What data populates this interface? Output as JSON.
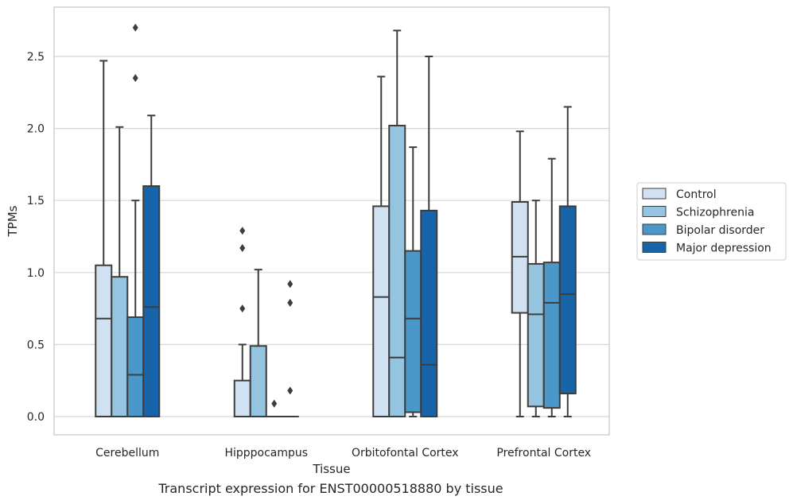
{
  "chart_data": {
    "type": "box",
    "xlabel": "Tissue",
    "ylabel": "TPMs",
    "ylim": [
      -0.13,
      2.85
    ],
    "yticks": [
      0.0,
      0.5,
      1.0,
      1.5,
      2.0,
      2.5
    ],
    "ytick_labels": [
      "0.0",
      "0.5",
      "1.0",
      "1.5",
      "2.0",
      "2.5"
    ],
    "grid": true,
    "legend_position": "right",
    "categories": [
      "Cerebellum",
      "Hipppocampus",
      "Orbitofontal Cortex",
      "Prefrontal Cortex"
    ],
    "series": [
      {
        "name": "Control",
        "color": "#d0e1f2",
        "boxes": [
          {
            "whislo": 0.0,
            "q1": 0.0,
            "med": 0.68,
            "q3": 1.05,
            "whishi": 2.47,
            "fliers": []
          },
          {
            "whislo": 0.0,
            "q1": 0.0,
            "med": 0.0,
            "q3": 0.25,
            "whishi": 0.5,
            "fliers": [
              0.75,
              1.17,
              1.29
            ]
          },
          {
            "whislo": 0.0,
            "q1": 0.0,
            "med": 0.83,
            "q3": 1.46,
            "whishi": 2.36,
            "fliers": []
          },
          {
            "whislo": 0.0,
            "q1": 0.72,
            "med": 1.11,
            "q3": 1.49,
            "whishi": 1.98,
            "fliers": []
          }
        ]
      },
      {
        "name": "Schizophrenia",
        "color": "#94c4df",
        "boxes": [
          {
            "whislo": 0.0,
            "q1": 0.0,
            "med": 0.0,
            "q3": 0.97,
            "whishi": 2.01,
            "fliers": []
          },
          {
            "whislo": 0.0,
            "q1": 0.0,
            "med": 0.0,
            "q3": 0.49,
            "whishi": 1.02,
            "fliers": []
          },
          {
            "whislo": 0.0,
            "q1": 0.0,
            "med": 0.41,
            "q3": 2.02,
            "whishi": 2.68,
            "fliers": []
          },
          {
            "whislo": 0.0,
            "q1": 0.07,
            "med": 0.71,
            "q3": 1.06,
            "whishi": 1.5,
            "fliers": []
          }
        ]
      },
      {
        "name": "Bipolar disorder",
        "color": "#4a98c9",
        "boxes": [
          {
            "whislo": 0.0,
            "q1": 0.0,
            "med": 0.29,
            "q3": 0.69,
            "whishi": 1.5,
            "fliers": [
              2.35,
              2.7
            ]
          },
          {
            "whislo": 0.0,
            "q1": 0.0,
            "med": 0.0,
            "q3": 0.0,
            "whishi": 0.0,
            "fliers": [
              0.09
            ]
          },
          {
            "whislo": 0.0,
            "q1": 0.03,
            "med": 0.68,
            "q3": 1.15,
            "whishi": 1.87,
            "fliers": []
          },
          {
            "whislo": 0.0,
            "q1": 0.06,
            "med": 0.79,
            "q3": 1.07,
            "whishi": 1.79,
            "fliers": []
          }
        ]
      },
      {
        "name": "Major depression",
        "color": "#1764ab",
        "boxes": [
          {
            "whislo": 0.0,
            "q1": 0.0,
            "med": 0.76,
            "q3": 1.6,
            "whishi": 2.09,
            "fliers": []
          },
          {
            "whislo": 0.0,
            "q1": 0.0,
            "med": 0.0,
            "q3": 0.0,
            "whishi": 0.0,
            "fliers": [
              0.18,
              0.79,
              0.92
            ]
          },
          {
            "whislo": 0.0,
            "q1": 0.0,
            "med": 0.36,
            "q3": 1.43,
            "whishi": 2.5,
            "fliers": []
          },
          {
            "whislo": 0.0,
            "q1": 0.16,
            "med": 0.85,
            "q3": 1.46,
            "whishi": 2.15,
            "fliers": []
          }
        ]
      }
    ]
  },
  "caption": "Transcript expression for ENST00000518880 by tissue"
}
